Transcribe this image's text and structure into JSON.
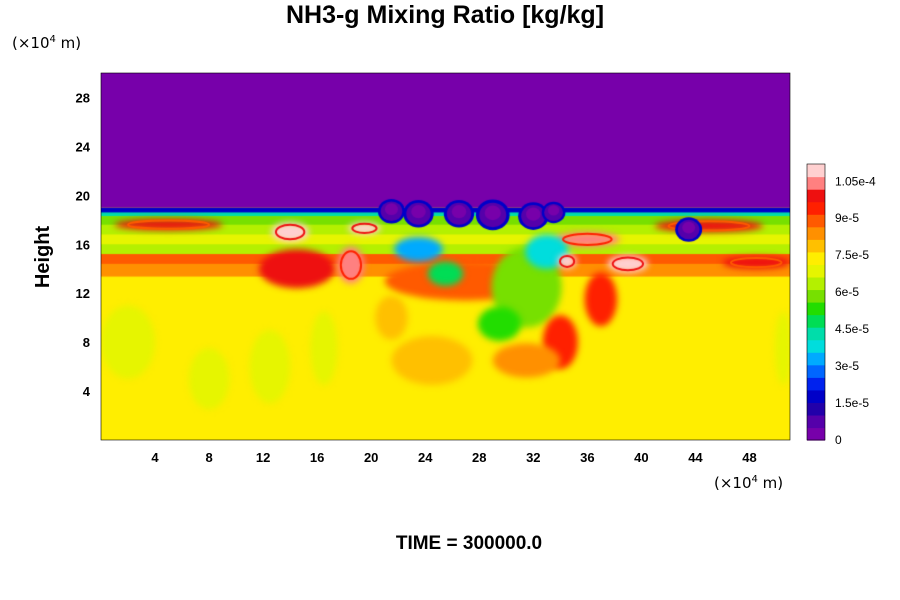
{
  "chart_data": {
    "type": "heatmap",
    "title": "NH3-g Mixing Ratio [kg/kg]",
    "ylabel": "Height",
    "y_unit": {
      "base": "(×10",
      "exp": "4",
      "tail": " m)"
    },
    "x_unit": {
      "base": "(×10",
      "exp": "4",
      "tail": " m)"
    },
    "xlim": [
      0,
      51
    ],
    "ylim": [
      0,
      30
    ],
    "x_ticks": [
      4,
      8,
      12,
      16,
      20,
      24,
      28,
      32,
      36,
      40,
      44,
      48
    ],
    "y_ticks": [
      4,
      8,
      12,
      16,
      20,
      24,
      28
    ],
    "footer": "TIME = 300000.0",
    "colorbar": {
      "min": 0,
      "max": 0.000112,
      "tick_values": [
        0,
        1.5e-05,
        3e-05,
        4.5e-05,
        6e-05,
        7.5e-05,
        9e-05,
        0.000105
      ],
      "tick_labels": [
        "0",
        "1.5e-5",
        "3e-5",
        "4.5e-5",
        "6e-5",
        "7.5e-5",
        "9e-5",
        "1.05e-4"
      ],
      "colors": [
        "#7700aa",
        "#5500aa",
        "#2200aa",
        "#0000c8",
        "#0022ee",
        "#0066ff",
        "#00aaff",
        "#00dddd",
        "#00ddaa",
        "#00dd55",
        "#22dd00",
        "#77e000",
        "#b4f000",
        "#e6f500",
        "#ffee00",
        "#ffc000",
        "#ff9000",
        "#ff5a00",
        "#ff2000",
        "#ee1010",
        "#ff8080",
        "#ffd0d0"
      ]
    },
    "field": {
      "background_value": 7.3e-05,
      "upper_region": {
        "y_from": 19,
        "value": 0
      },
      "stratified_band": [
        {
          "y0": 18.6,
          "y1": 19,
          "value": 2e-05
        },
        {
          "y0": 18.3,
          "y1": 18.6,
          "value": 4.5e-05
        },
        {
          "y0": 17.6,
          "y1": 18.3,
          "value": 6e-05
        },
        {
          "y0": 16.8,
          "y1": 17.6,
          "value": 6.4e-05
        },
        {
          "y0": 16.0,
          "y1": 16.8,
          "value": 7e-05
        },
        {
          "y0": 15.2,
          "y1": 16.0,
          "value": 6.2e-05
        },
        {
          "y0": 14.4,
          "y1": 15.2,
          "value": 8.8e-05
        },
        {
          "y0": 13.4,
          "y1": 14.4,
          "value": 8.2e-05
        }
      ],
      "features": [
        {
          "x": 5,
          "y": 17.6,
          "rx": 4,
          "ry": 0.45,
          "value": 0.0001
        },
        {
          "x": 14,
          "y": 17.0,
          "rx": 1.4,
          "ry": 0.8,
          "value": 0.00011
        },
        {
          "x": 19.5,
          "y": 17.3,
          "rx": 1.2,
          "ry": 0.5,
          "value": 0.00011
        },
        {
          "x": 36,
          "y": 16.4,
          "rx": 2.4,
          "ry": 0.6,
          "value": 0.000105
        },
        {
          "x": 45,
          "y": 17.5,
          "rx": 4,
          "ry": 0.5,
          "value": 0.0001
        },
        {
          "x": 14.5,
          "y": 14.0,
          "rx": 2.8,
          "ry": 1.6,
          "value": 9.8e-05
        },
        {
          "x": 18.5,
          "y": 14.3,
          "rx": 1,
          "ry": 1.5,
          "value": 0.000105
        },
        {
          "x": 39,
          "y": 14.4,
          "rx": 1.5,
          "ry": 0.7,
          "value": 0.00011
        },
        {
          "x": 48.5,
          "y": 14.5,
          "rx": 2.5,
          "ry": 0.5,
          "value": 0.0001
        },
        {
          "x": 27,
          "y": 13.0,
          "rx": 6,
          "ry": 1.6,
          "value": 8.8e-05
        },
        {
          "x": 23.5,
          "y": 15.6,
          "rx": 1.8,
          "ry": 1,
          "value": 3.5e-05
        },
        {
          "x": 25.5,
          "y": 13.6,
          "rx": 1.3,
          "ry": 1,
          "value": 5e-05
        },
        {
          "x": 31.5,
          "y": 12.5,
          "rx": 2.6,
          "ry": 3.3,
          "value": 6e-05
        },
        {
          "x": 29.5,
          "y": 9.5,
          "rx": 1.6,
          "ry": 1.4,
          "value": 5.5e-05
        },
        {
          "x": 33,
          "y": 15.4,
          "rx": 1.6,
          "ry": 1.4,
          "value": 4e-05
        },
        {
          "x": 34.5,
          "y": 14.6,
          "rx": 0.7,
          "ry": 0.6,
          "value": 0.00011
        },
        {
          "x": 37,
          "y": 11.5,
          "rx": 1.2,
          "ry": 2.2,
          "value": 9.2e-05
        },
        {
          "x": 34,
          "y": 8.0,
          "rx": 1.3,
          "ry": 2.2,
          "value": 9.5e-05
        },
        {
          "x": 31.5,
          "y": 6.5,
          "rx": 2.5,
          "ry": 1.4,
          "value": 8.3e-05
        },
        {
          "x": 21.5,
          "y": 10.0,
          "rx": 1.2,
          "ry": 1.8,
          "value": 8e-05
        },
        {
          "x": 24.5,
          "y": 6.5,
          "rx": 3,
          "ry": 2,
          "value": 7.7e-05
        },
        {
          "x": 2,
          "y": 8.0,
          "rx": 2,
          "ry": 3,
          "value": 6.7e-05
        },
        {
          "x": 8,
          "y": 5.0,
          "rx": 1.5,
          "ry": 2.5,
          "value": 6.8e-05
        },
        {
          "x": 12.5,
          "y": 6.0,
          "rx": 1.5,
          "ry": 3,
          "value": 6.8e-05
        },
        {
          "x": 16.5,
          "y": 7.5,
          "rx": 1,
          "ry": 3,
          "value": 6.8e-05
        },
        {
          "x": 50.5,
          "y": 7.5,
          "rx": 0.6,
          "ry": 3,
          "value": 6.8e-05
        }
      ],
      "plumes": [
        {
          "x": 21.5,
          "y": 18.7,
          "r": 0.8,
          "value": 1e-05
        },
        {
          "x": 23.5,
          "y": 18.5,
          "r": 0.9,
          "value": 1e-05
        },
        {
          "x": 26.5,
          "y": 18.5,
          "r": 0.9,
          "value": 1e-05
        },
        {
          "x": 29,
          "y": 18.4,
          "r": 1.0,
          "value": 1e-05
        },
        {
          "x": 32,
          "y": 18.3,
          "r": 0.9,
          "value": 1e-05
        },
        {
          "x": 33.5,
          "y": 18.6,
          "r": 0.7,
          "value": 1e-05
        },
        {
          "x": 43.5,
          "y": 17.2,
          "r": 0.8,
          "value": 1e-05
        }
      ]
    }
  }
}
